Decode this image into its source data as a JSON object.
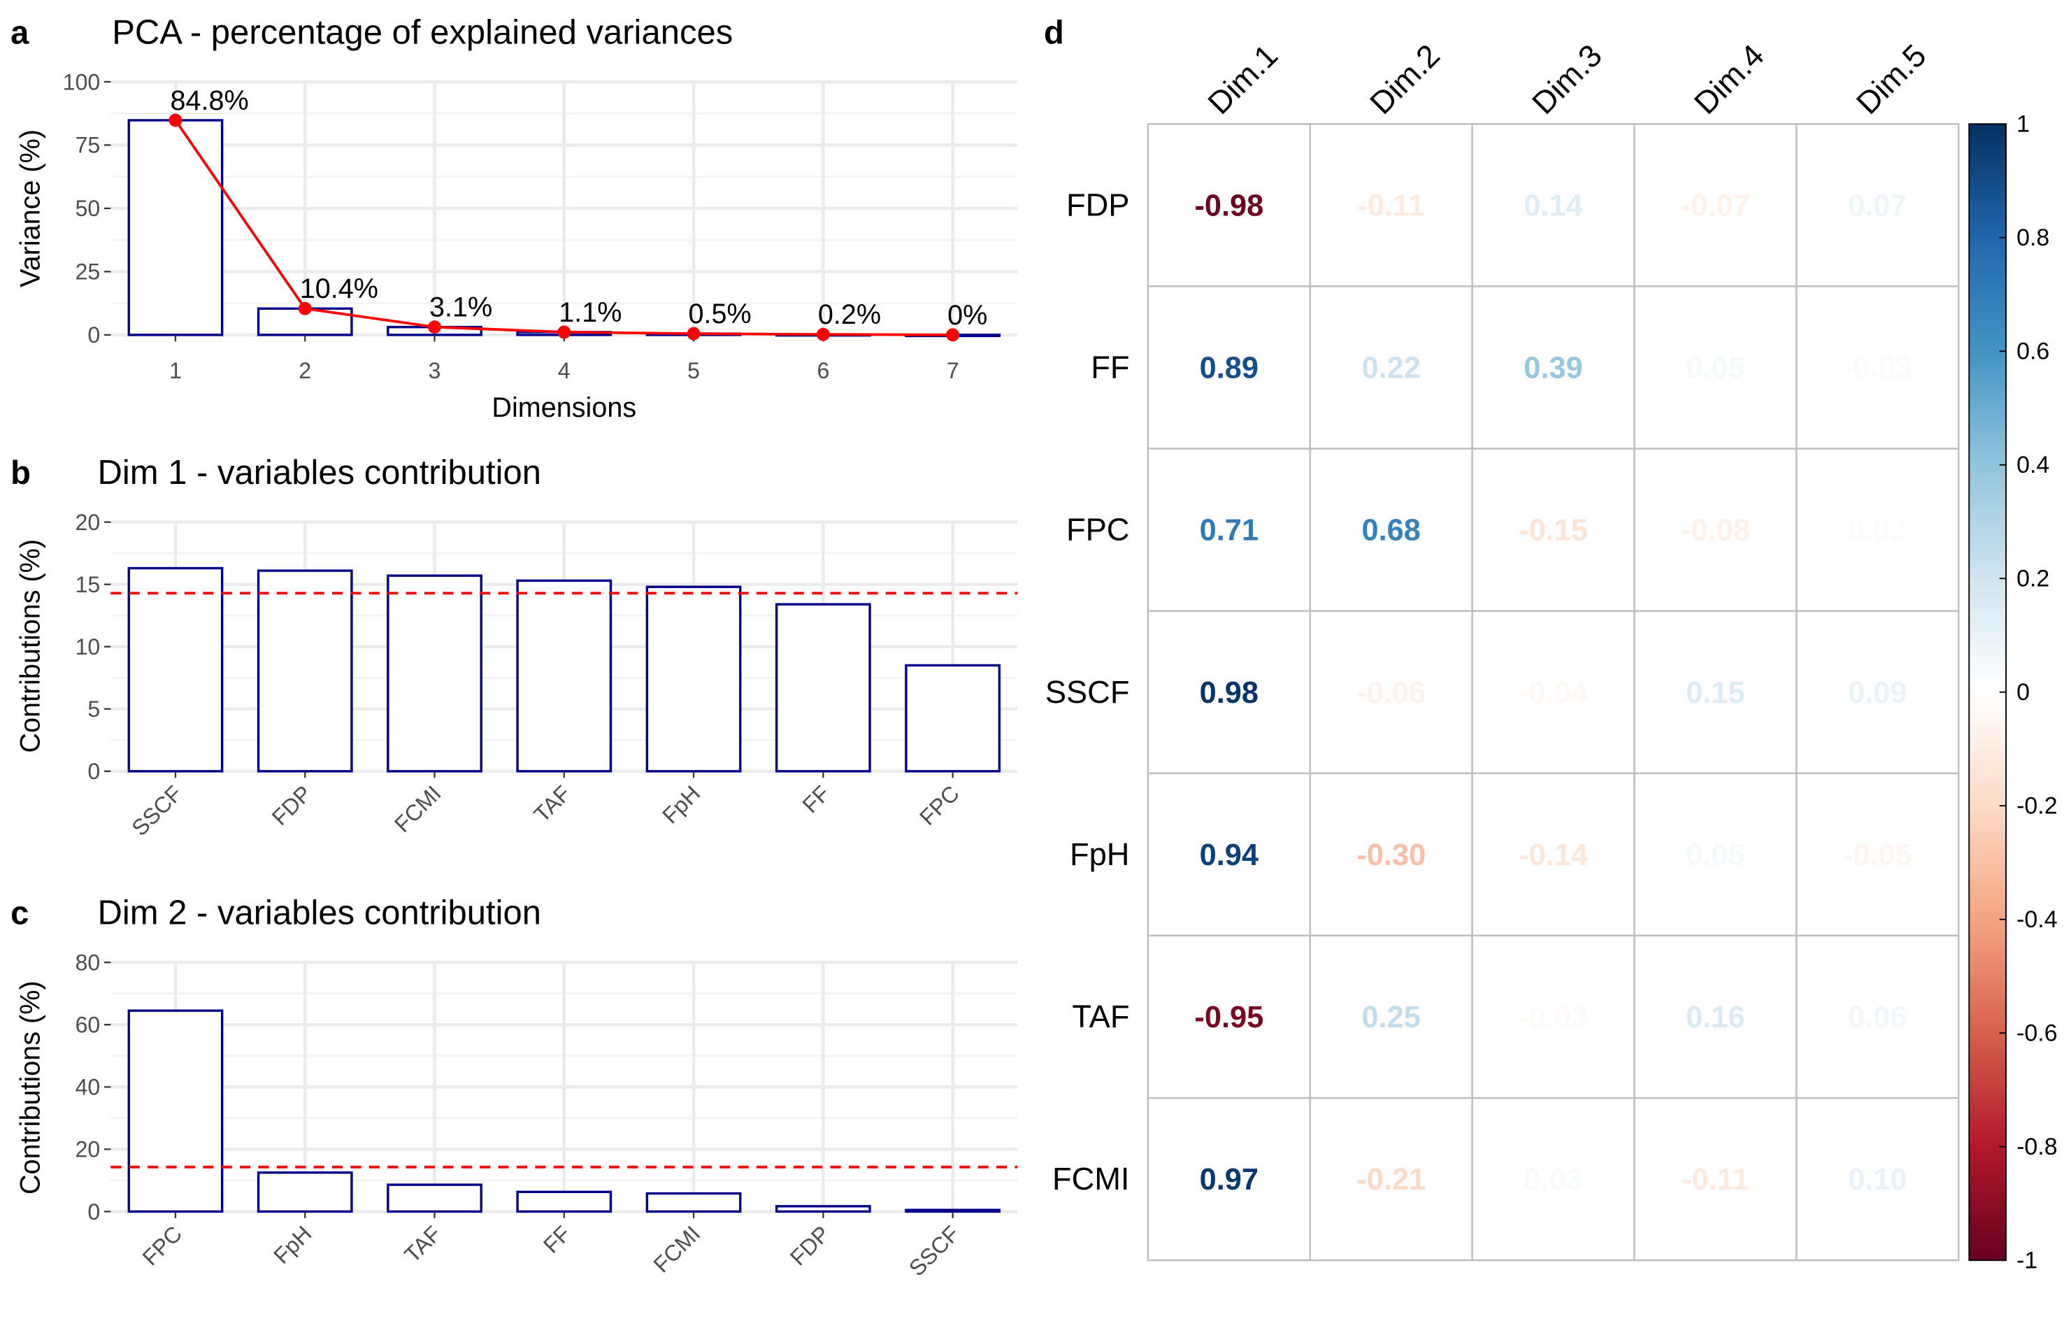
{
  "panel_labels": [
    "a",
    "b",
    "c",
    "d"
  ],
  "colors": {
    "bar_outline": "#00008b",
    "line": "#ff0000",
    "threshold": "#ff0000",
    "grid": "#ebebeb",
    "cell_border": "#bebebe",
    "corr_neg": "#67001f",
    "corr_mid": "#ffffff",
    "corr_pos": "#053061"
  },
  "chart_data": [
    {
      "panel": "a",
      "type": "bar",
      "title": "PCA - percentage of explained variances",
      "xlabel": "Dimensions",
      "ylabel": "Variance (%)",
      "categories": [
        "1",
        "2",
        "3",
        "4",
        "5",
        "6",
        "7"
      ],
      "values": [
        84.8,
        10.4,
        3.1,
        1.1,
        0.5,
        0.2,
        0.0
      ],
      "value_labels": [
        "84.8%",
        "10.4%",
        "3.1%",
        "1.1%",
        "0.5%",
        "0.2%",
        "0%"
      ],
      "line_overlay": true,
      "ylim": [
        0,
        100
      ],
      "yticks": [
        0,
        25,
        50,
        75,
        100
      ],
      "grid": true
    },
    {
      "panel": "b",
      "type": "bar",
      "title": "Dim 1 - variables contribution",
      "xlabel": "",
      "ylabel": "Contributions (%)",
      "categories": [
        "SSCF",
        "FDP",
        "FCMI",
        "TAF",
        "FpH",
        "FF",
        "FPC"
      ],
      "values": [
        16.3,
        16.1,
        15.7,
        15.3,
        14.8,
        13.4,
        8.5
      ],
      "reference_line": 14.29,
      "ylim": [
        0,
        20
      ],
      "yticks": [
        0,
        5,
        10,
        15,
        20
      ],
      "grid": true
    },
    {
      "panel": "c",
      "type": "bar",
      "title": "Dim 2 - variables contribution",
      "xlabel": "",
      "ylabel": "Contributions (%)",
      "categories": [
        "FPC",
        "FpH",
        "TAF",
        "FF",
        "FCMI",
        "FDP",
        "SSCF"
      ],
      "values": [
        64.5,
        12.5,
        8.6,
        6.3,
        5.8,
        1.7,
        0.5
      ],
      "reference_line": 14.29,
      "ylim": [
        0,
        80
      ],
      "yticks": [
        0,
        20,
        40,
        60,
        80
      ],
      "grid": true
    },
    {
      "panel": "d",
      "type": "heatmap",
      "columns": [
        "Dim.1",
        "Dim.2",
        "Dim.3",
        "Dim.4",
        "Dim.5"
      ],
      "rows": [
        "FDP",
        "FF",
        "FPC",
        "SSCF",
        "FpH",
        "TAF",
        "FCMI"
      ],
      "values": [
        [
          -0.98,
          -0.11,
          0.14,
          -0.07,
          0.07
        ],
        [
          0.89,
          0.22,
          0.39,
          0.05,
          -0.03
        ],
        [
          0.71,
          0.68,
          -0.15,
          -0.08,
          0.02
        ],
        [
          0.98,
          -0.06,
          -0.04,
          0.15,
          0.09
        ],
        [
          0.94,
          -0.3,
          -0.14,
          0.05,
          -0.05
        ],
        [
          -0.95,
          0.25,
          -0.03,
          0.16,
          0.06
        ],
        [
          0.97,
          -0.21,
          0.03,
          -0.11,
          0.1
        ]
      ],
      "cell_labels": [
        [
          "-0.98",
          "-0.11",
          "0.14",
          "-0.07",
          "0.07"
        ],
        [
          "0.89",
          "0.22",
          "0.39",
          "0.05",
          "-0.03"
        ],
        [
          "0.71",
          "0.68",
          "-0.15",
          "-0.08",
          "0.02"
        ],
        [
          "0.98",
          "-0.06",
          "-0.04",
          "0.15",
          "0.09"
        ],
        [
          "0.94",
          "-0.30",
          "-0.14",
          "0.05",
          "-0.05"
        ],
        [
          "-0.95",
          "0.25",
          "-0.03",
          "0.16",
          "0.06"
        ],
        [
          "0.97",
          "-0.21",
          "0.03",
          "-0.11",
          "0.10"
        ]
      ],
      "colorbar_ticks": [
        "1",
        "0.8",
        "0.6",
        "0.4",
        "0.2",
        "0",
        "-0.2",
        "-0.4",
        "-0.6",
        "-0.8",
        "-1"
      ],
      "vlim": [
        -1,
        1
      ]
    }
  ]
}
